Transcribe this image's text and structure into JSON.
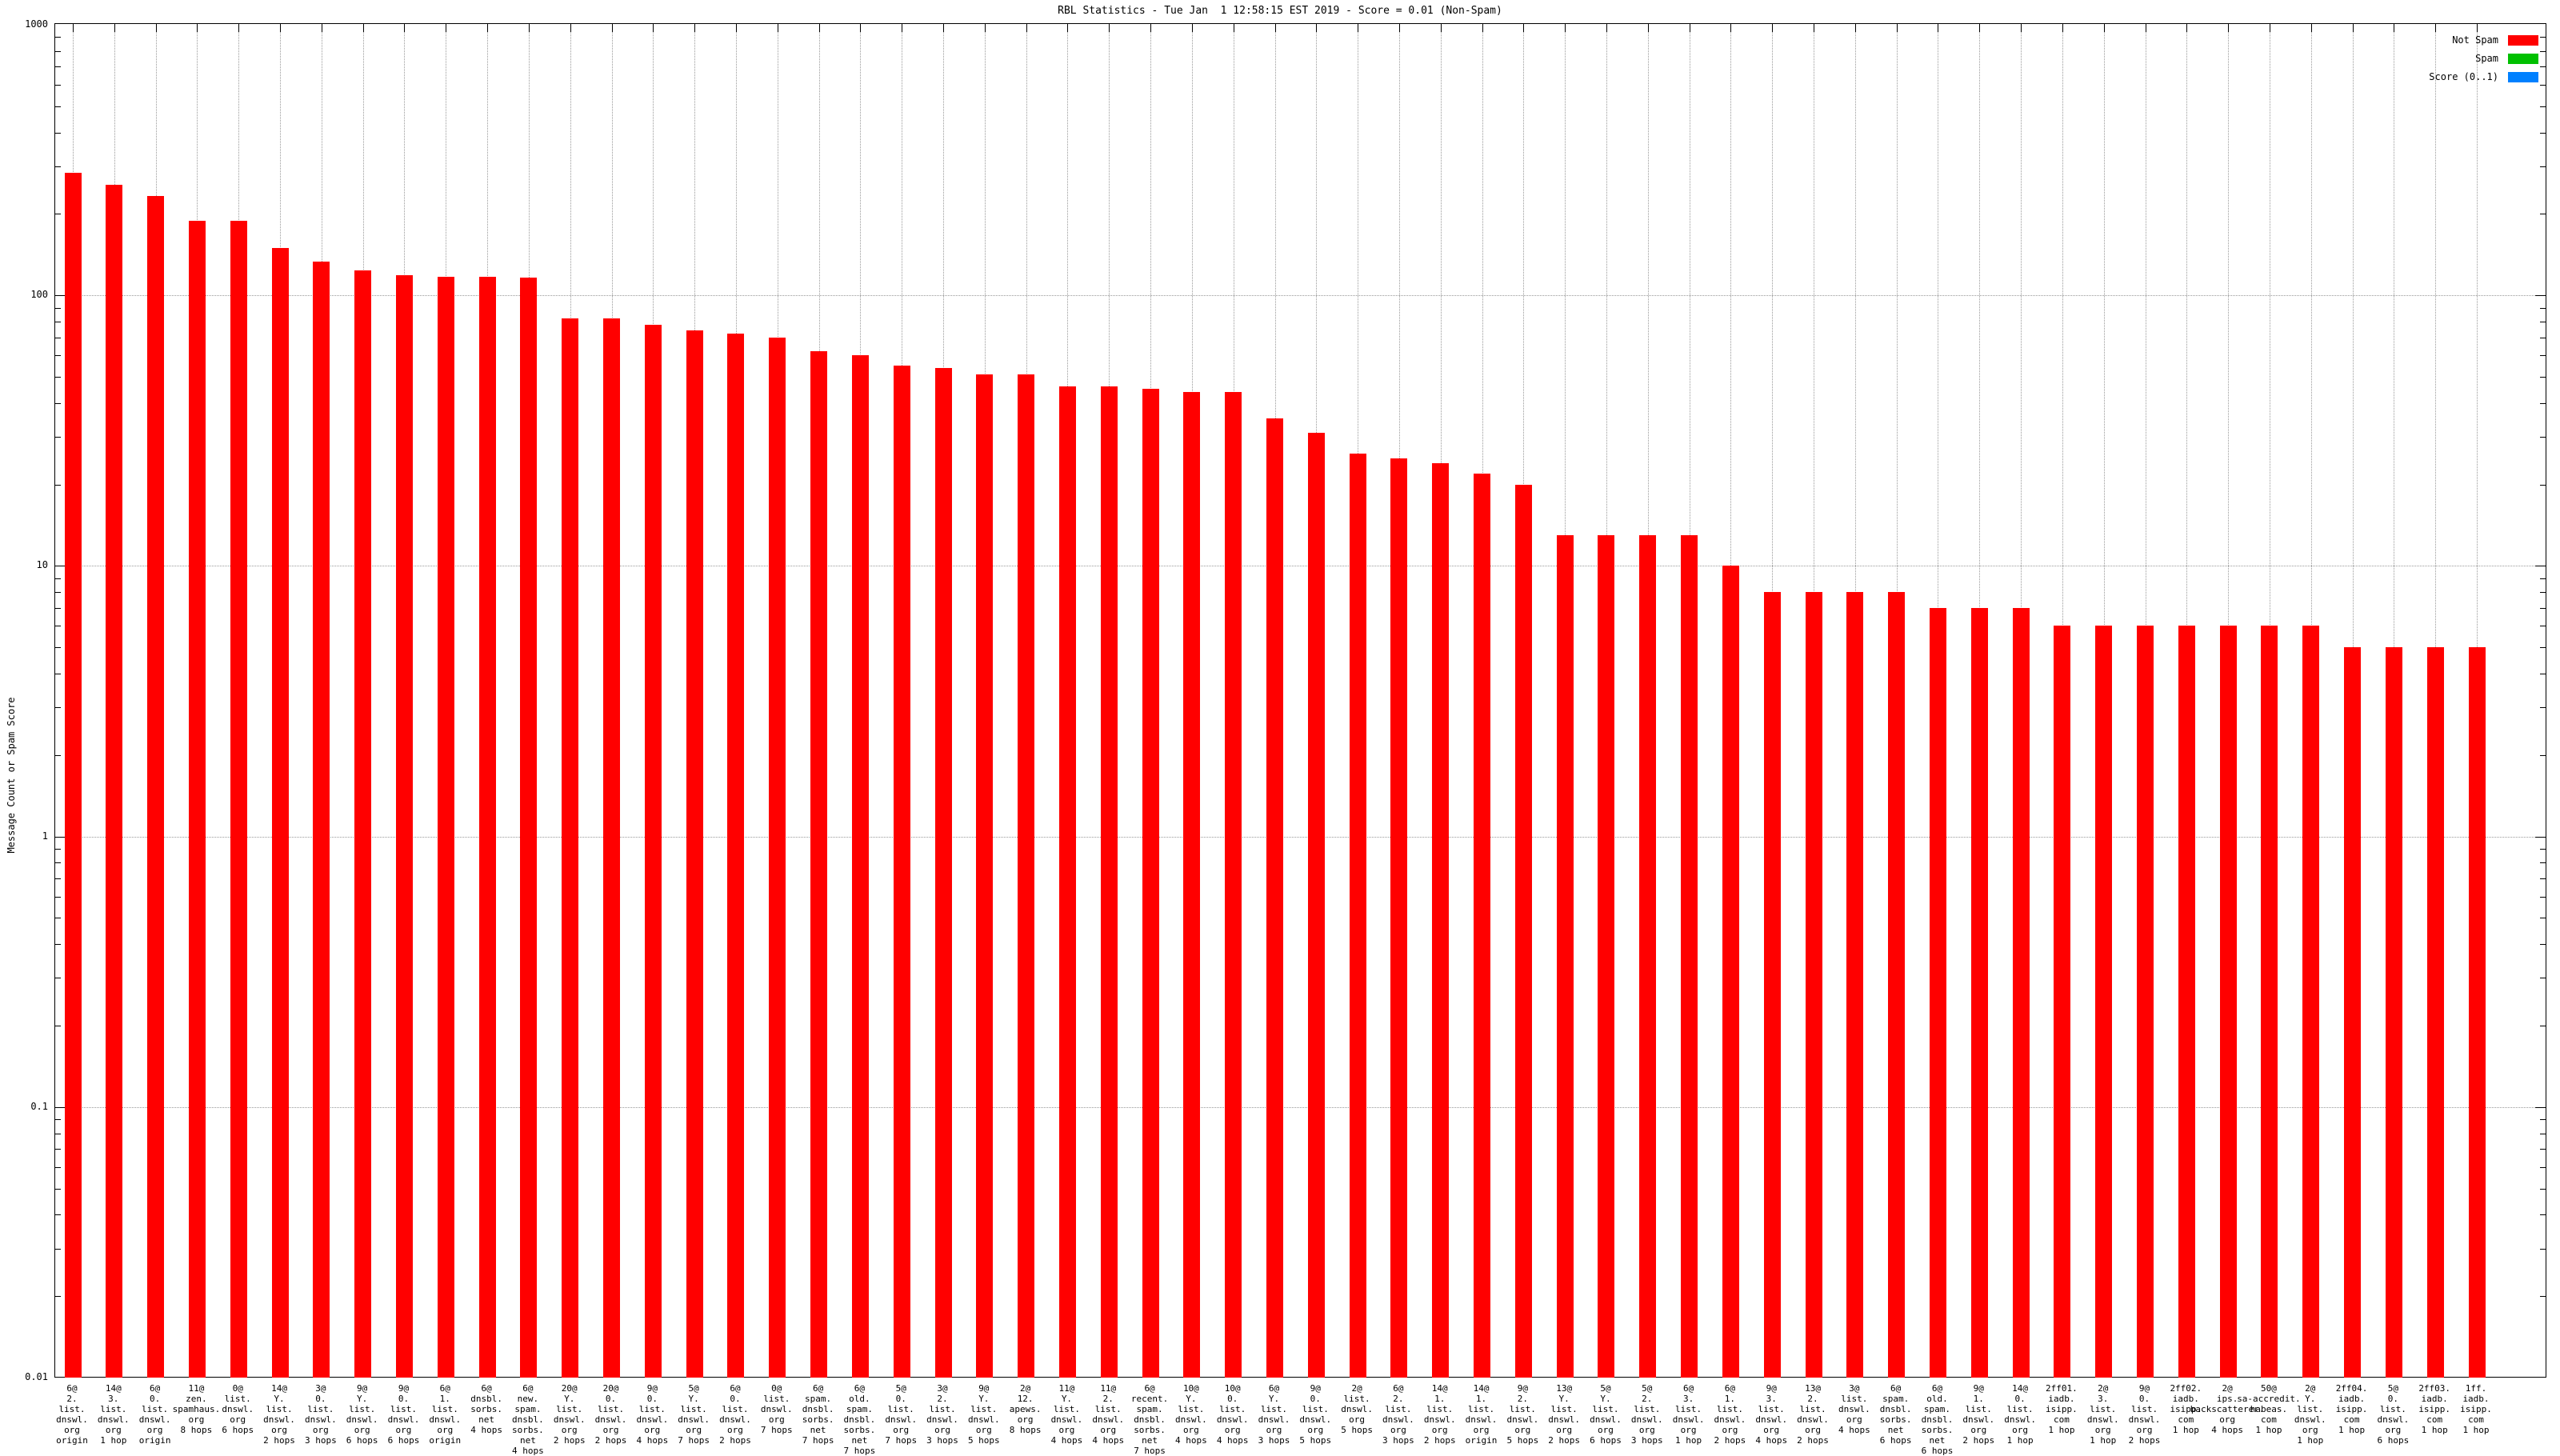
{
  "chart_data": {
    "type": "bar",
    "title": "RBL Statistics - Tue Jan  1 12:58:15 EST 2019 - Score = 0.01 (Non-Spam)",
    "ylabel": "Message Count or Spam Score",
    "xlabel": "",
    "yscale": "log",
    "ylim": [
      0.01,
      1000
    ],
    "ytick_labels": [
      "1000",
      "100",
      "10",
      "1",
      "0.1",
      "0.01"
    ],
    "grid": true,
    "legend_position": "top-right",
    "legend": [
      {
        "label": "Not Spam",
        "color": "#ff0000"
      },
      {
        "label": "Spam",
        "color": "#00c000"
      },
      {
        "label": "Score (0..1)",
        "color": "#0080ff"
      }
    ],
    "bar_color": "#ff0000",
    "categories": [
      "6@\n2.\nlist.\ndnswl.\norg\norigin",
      "14@\n3.\nlist.\ndnswl.\norg\n1 hop",
      "6@\n0.\nlist.\ndnswl.\norg\norigin",
      "11@\nzen.\nspamhaus.\norg\n8 hops",
      "0@\nlist.\ndnswl.\norg\n6 hops",
      "14@\nY.\nlist.\ndnswl.\norg\n2 hops",
      "3@\n0.\nlist.\ndnswl.\norg\n3 hops",
      "9@\nY.\nlist.\ndnswl.\norg\n6 hops",
      "9@\n0.\nlist.\ndnswl.\norg\n6 hops",
      "6@\n1.\nlist.\ndnswl.\norg\norigin",
      "6@\ndnsbl.\nsorbs.\nnet\n4 hops",
      "6@\nnew.\nspam.\ndnsbl.\nsorbs.\nnet\n4 hops",
      "20@\nY.\nlist.\ndnswl.\norg\n2 hops",
      "20@\n0.\nlist.\ndnswl.\norg\n2 hops",
      "9@\n0.\nlist.\ndnswl.\norg\n4 hops",
      "5@\nY.\nlist.\ndnswl.\norg\n7 hops",
      "6@\n0.\nlist.\ndnswl.\norg\n2 hops",
      "0@\nlist.\ndnswl.\norg\n7 hops",
      "6@\nspam.\ndnsbl.\nsorbs.\nnet\n7 hops",
      "6@\nold.\nspam.\ndnsbl.\nsorbs.\nnet\n7 hops",
      "5@\n0.\nlist.\ndnswl.\norg\n7 hops",
      "3@\n2.\nlist.\ndnswl.\norg\n3 hops",
      "9@\nY.\nlist.\ndnswl.\norg\n5 hops",
      "2@\n12.\napews.\norg\n8 hops",
      "11@\nY.\nlist.\ndnswl.\norg\n4 hops",
      "11@\n2.\nlist.\ndnswl.\norg\n4 hops",
      "6@\nrecent.\nspam.\ndnsbl.\nsorbs.\nnet\n7 hops",
      "10@\nY.\nlist.\ndnswl.\norg\n4 hops",
      "10@\n0.\nlist.\ndnswl.\norg\n4 hops",
      "6@\nY.\nlist.\ndnswl.\norg\n3 hops",
      "9@\n0.\nlist.\ndnswl.\norg\n5 hops",
      "2@\nlist.\ndnswl.\norg\n5 hops",
      "6@\n2.\nlist.\ndnswl.\norg\n3 hops",
      "14@\n1.\nlist.\ndnswl.\norg\n2 hops",
      "14@\n1.\nlist.\ndnswl.\norg\norigin",
      "9@\n2.\nlist.\ndnswl.\norg\n5 hops",
      "13@\nY.\nlist.\ndnswl.\norg\n2 hops",
      "5@\nY.\nlist.\ndnswl.\norg\n6 hops",
      "5@\n2.\nlist.\ndnswl.\norg\n3 hops",
      "6@\n3.\nlist.\ndnswl.\norg\n1 hop",
      "6@\n1.\nlist.\ndnswl.\norg\n2 hops",
      "9@\n3.\nlist.\ndnswl.\norg\n4 hops",
      "13@\n2.\nlist.\ndnswl.\norg\n2 hops",
      "3@\nlist.\ndnswl.\norg\n4 hops",
      "6@\nspam.\ndnsbl.\nsorbs.\nnet\n6 hops",
      "6@\nold.\nspam.\ndnsbl.\nsorbs.\nnet\n6 hops",
      "9@\n1.\nlist.\ndnswl.\norg\n2 hops",
      "14@\n0.\nlist.\ndnswl.\norg\n1 hop",
      "2ff01.\niadb.\nisipp.\ncom\n1 hop",
      "2@\n3.\nlist.\ndnswl.\norg\n1 hop",
      "9@\n0.\nlist.\ndnswl.\norg\n2 hops",
      "2ff02.\niadb.\nisipp.\ncom\n1 hop",
      "2@\nips.\nbackscatterer.\norg\n4 hops",
      "50@\nsa-accredit.\nhabeas.\ncom\n1 hop",
      "2@\nY.\nlist.\ndnswl.\norg\n1 hop",
      "2ff04.\niadb.\nisipp.\ncom\n1 hop",
      "5@\n0.\nlist.\ndnswl.\norg\n6 hops",
      "2ff03.\niadb.\nisipp.\ncom\n1 hop",
      "1ff.\niadb.\nisipp.\ncom\n1 hop"
    ],
    "values": [
      283,
      257,
      233,
      189,
      189,
      150,
      133,
      124,
      119,
      117,
      117,
      116,
      82,
      82,
      78,
      74,
      72,
      70,
      62,
      60,
      55,
      54,
      51,
      51,
      46,
      46,
      45,
      44,
      44,
      35,
      31,
      26,
      25,
      24,
      22,
      20,
      13,
      13,
      13,
      13,
      10,
      8,
      8,
      8,
      8,
      7,
      7,
      7,
      6,
      6,
      6,
      6,
      6,
      6,
      6,
      5,
      5,
      5,
      5
    ]
  }
}
